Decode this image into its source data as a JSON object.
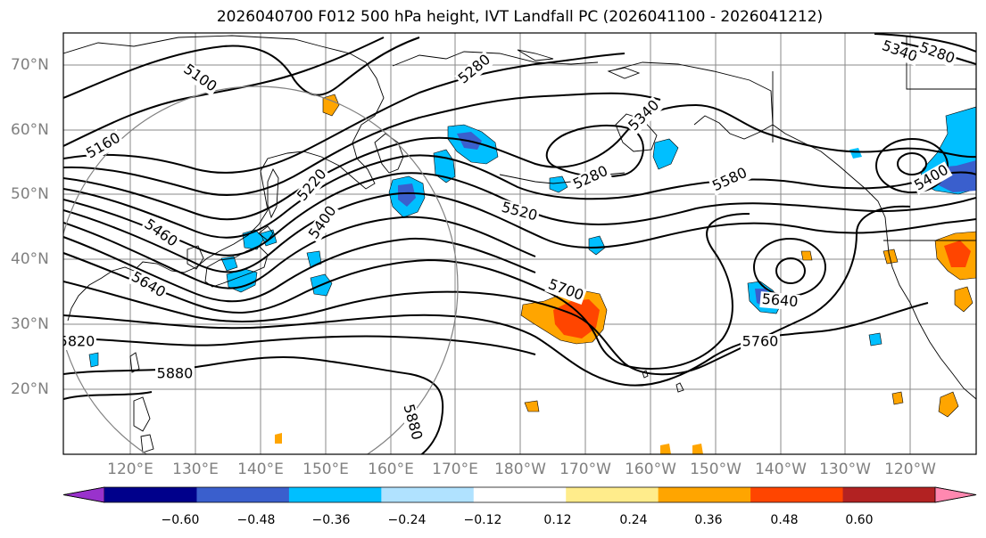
{
  "title": "2026040700 F012 500 hPa height, IVT Landfall PC (2026041100 - 2026041212)",
  "lat_labels": [
    "70°N",
    "60°N",
    "50°N",
    "40°N",
    "30°N",
    "20°N"
  ],
  "lon_labels": [
    "120°E",
    "130°E",
    "140°E",
    "150°E",
    "160°E",
    "170°E",
    "180°W",
    "170°W",
    "160°W",
    "150°W",
    "140°W",
    "130°W",
    "120°W"
  ],
  "contour_labels": [
    "5100",
    "5160",
    "5220",
    "5280",
    "5340",
    "5340",
    "5280",
    "5280",
    "5400",
    "5460",
    "5520",
    "5580",
    "5640",
    "5640",
    "5700",
    "5760",
    "5820",
    "5880",
    "5880",
    "5400"
  ],
  "colorbar": {
    "ticks": [
      "−0.60",
      "−0.48",
      "−0.36",
      "−0.24",
      "−0.12",
      "0.12",
      "0.24",
      "0.36",
      "0.48",
      "0.60"
    ],
    "colors": [
      "#9932cc",
      "#00008b",
      "#3a5fcd",
      "#00bfff",
      "#b0e2ff",
      "#ffffff",
      "#ffec8b",
      "#ffa500",
      "#ff4500",
      "#b22222",
      "#ff88b0"
    ]
  }
}
